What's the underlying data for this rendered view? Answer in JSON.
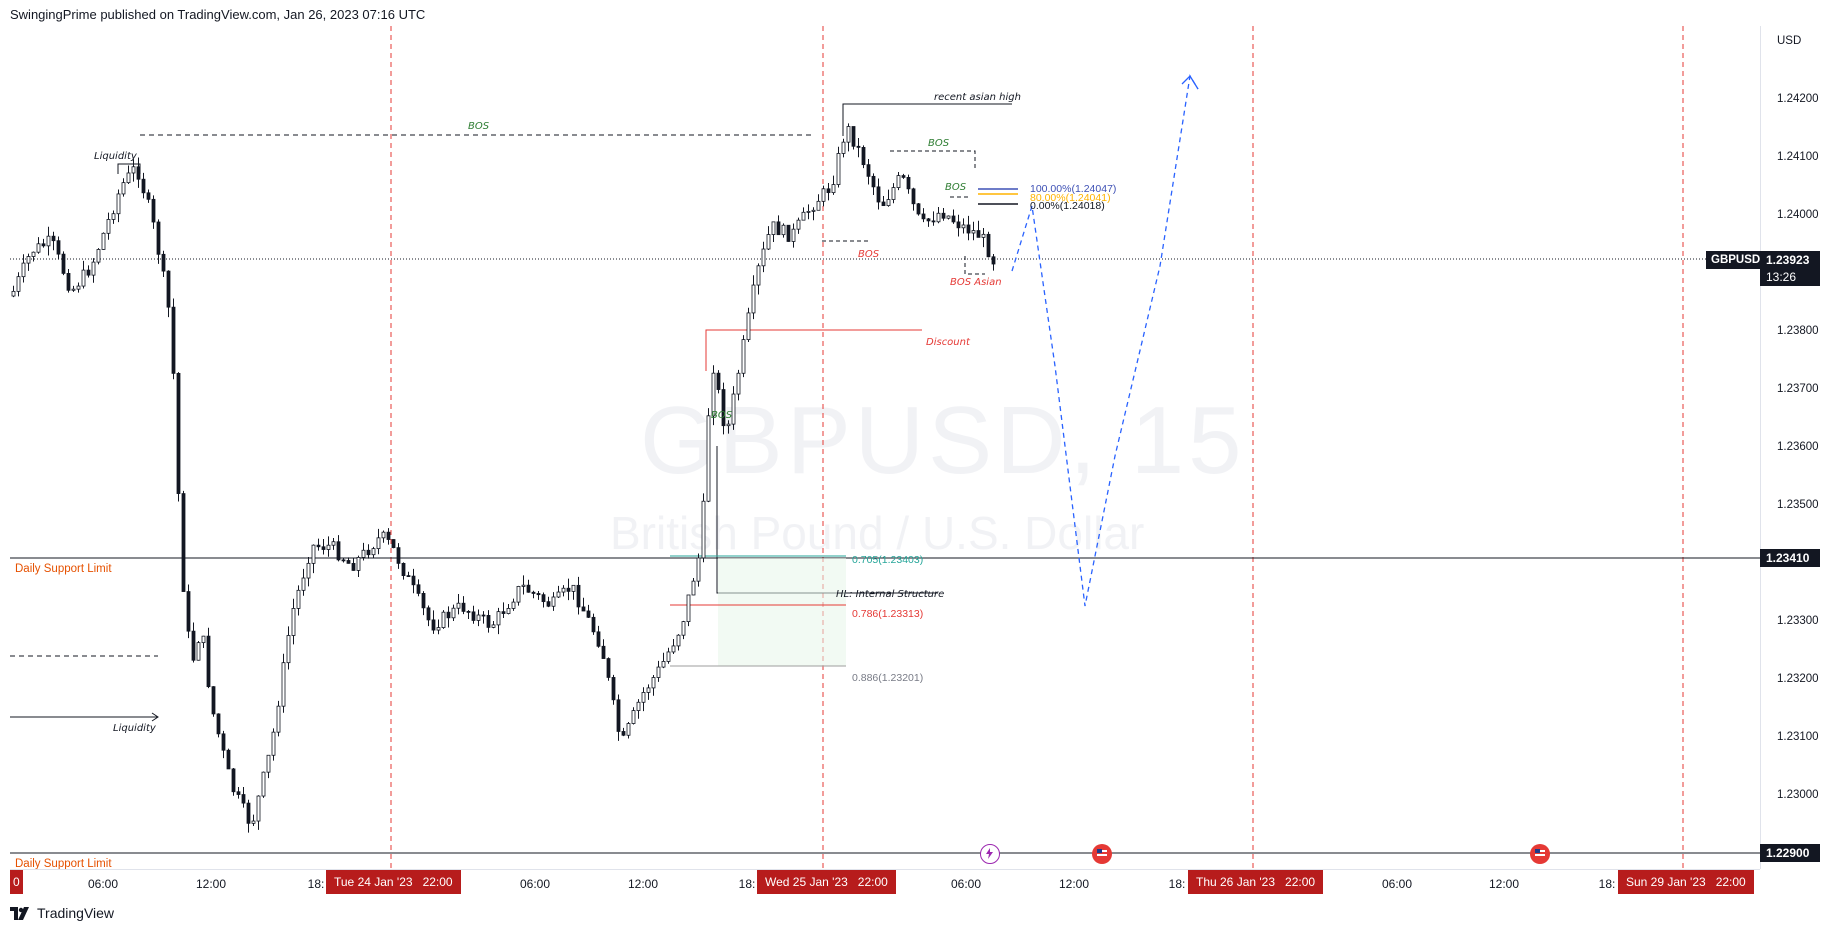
{
  "header": {
    "published_text": "SwingingPrime published on TradingView.com, Jan 26, 2023 07:16 UTC"
  },
  "watermark": {
    "symbol_line": "GBPUSD, 15",
    "name_line": "British Pound / U.S. Dollar"
  },
  "price_axis": {
    "currency": "USD",
    "ticks": [
      "1.24200",
      "1.24100",
      "1.24000",
      "1.23800",
      "1.23700",
      "1.23600",
      "1.23500",
      "1.23300",
      "1.23200",
      "1.23100",
      "1.23000"
    ],
    "current_tag": {
      "symbol": "GBPUSD",
      "price": "1.23923",
      "countdown": "13:26",
      "color": "#131722"
    },
    "level_tag_1": {
      "price": "1.23410"
    },
    "level_tag_2": {
      "price": "1.22900"
    }
  },
  "time_axis": {
    "labels": [
      "06:00",
      "12:00",
      "18:",
      "06:00",
      "12:00",
      "18:",
      "06:00",
      "12:00",
      "18:",
      "06:00",
      "12:00",
      "18:"
    ],
    "badges": [
      "Tue 24 Jan '23   22:00",
      "Wed 25 Jan '23   22:00",
      "Thu 26 Jan '23   22:00",
      "Sun 29 Jan '23   22:00"
    ],
    "left_edge_badge": "0",
    "badge_color": "#b71c1c"
  },
  "annotations": {
    "liquidity_top": "Liquidity",
    "liquidity_bottom": "Liquidity",
    "bos_top": "BOS",
    "recent_asian_high": "recent asian high",
    "bos_1": "BOS",
    "bos_2": "BOS",
    "bos_3": "BOS",
    "bos_red": "BOS",
    "bos_asian": "BOS Asian",
    "discount": "Discount",
    "bos_green_low": "BOS",
    "hl_internal": "HL: Internal Structure",
    "daily_support_1": "Daily Support Limit",
    "daily_support_2": "Daily Support Limit"
  },
  "fib_levels": {
    "f100": "100.00%(1.24047)",
    "f80": "80.00%(1.24041)",
    "f0": "0.00%(1.24018)",
    "f705": "0.705(1.23403)",
    "f786": "0.786(1.23313)",
    "f886": "0.886(1.23201)"
  },
  "footer": {
    "brand": "TradingView"
  },
  "colors": {
    "bull": "#ffffff",
    "bear": "#131722",
    "accent_red": "#e53935",
    "accent_green": "#2e7d32",
    "projection": "#2962ff"
  }
}
